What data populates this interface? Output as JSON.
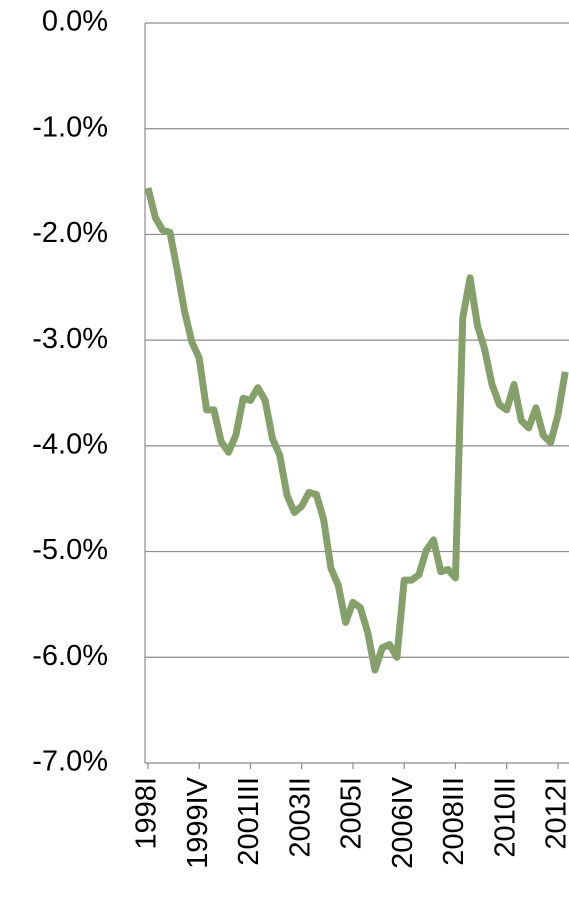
{
  "chart_data": {
    "type": "line",
    "categories": [
      "1998I",
      null,
      null,
      null,
      null,
      null,
      null,
      "1999IV",
      null,
      null,
      null,
      null,
      null,
      null,
      "2001III",
      null,
      null,
      null,
      null,
      null,
      null,
      "2003II",
      null,
      null,
      null,
      null,
      null,
      null,
      "2005I",
      null,
      null,
      null,
      null,
      null,
      null,
      "2006IV",
      null,
      null,
      null,
      null,
      null,
      null,
      "2008III",
      null,
      null,
      null,
      null,
      null,
      null,
      "2010II",
      null,
      null,
      null,
      null,
      null,
      null,
      "2012I",
      null
    ],
    "series": [
      {
        "color": "#85a06a",
        "values": [
          -1.56,
          -1.84,
          -1.96,
          -1.98,
          -2.34,
          -2.73,
          -3.02,
          -3.17,
          -3.66,
          -3.66,
          -3.96,
          -4.06,
          -3.9,
          -3.55,
          -3.57,
          -3.45,
          -3.57,
          -3.93,
          -4.09,
          -4.47,
          -4.63,
          -4.57,
          -4.44,
          -4.46,
          -4.7,
          -5.16,
          -5.32,
          -5.67,
          -5.48,
          -5.53,
          -5.76,
          -6.12,
          -5.91,
          -5.88,
          -6.0,
          -5.27,
          -5.27,
          -5.22,
          -4.99,
          -4.89,
          -5.19,
          -5.17,
          -5.25,
          -2.79,
          -2.41,
          -2.86,
          -3.09,
          -3.42,
          -3.61,
          -3.66,
          -3.42,
          -3.76,
          -3.83,
          -3.64,
          -3.9,
          -3.97,
          -3.71,
          -3.3
        ]
      }
    ],
    "ylim": [
      -7,
      0
    ],
    "yticks": [
      {
        "value": 0,
        "label": "0.0%"
      },
      {
        "value": -1,
        "label": "-1.0%"
      },
      {
        "value": -2,
        "label": "-2.0%"
      },
      {
        "value": -3,
        "label": "-3.0%"
      },
      {
        "value": -4,
        "label": "-4.0%"
      },
      {
        "value": -5,
        "label": "-5.0%"
      },
      {
        "value": -6,
        "label": "-6.0%"
      },
      {
        "value": -7,
        "label": "-7.0%"
      }
    ],
    "grid": true
  }
}
